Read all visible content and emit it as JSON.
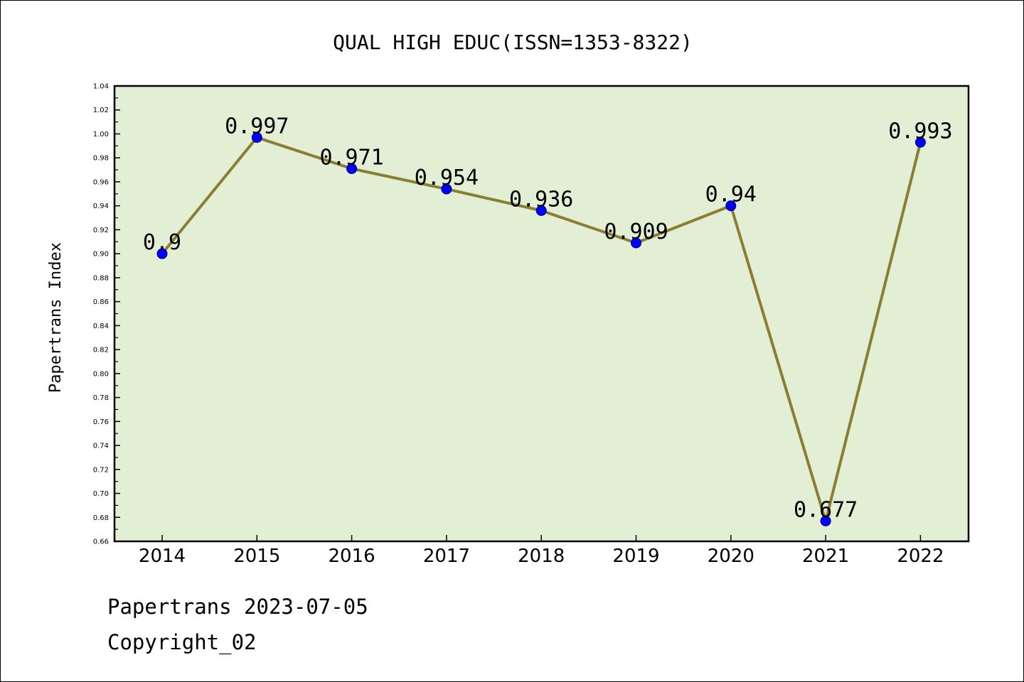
{
  "chart_data": {
    "type": "line",
    "title": "QUAL HIGH EDUC(ISSN=1353-8322)",
    "xlabel": "",
    "ylabel": "Papertrans Index",
    "categories": [
      "2014",
      "2015",
      "2016",
      "2017",
      "2018",
      "2019",
      "2020",
      "2021",
      "2022"
    ],
    "series": [
      {
        "values": [
          0.9,
          0.997,
          0.971,
          0.954,
          0.936,
          0.909,
          0.94,
          0.677,
          0.993
        ],
        "labels": [
          "0.9",
          "0.997",
          "0.971",
          "0.954",
          "0.936",
          "0.909",
          "0.94",
          "0.677",
          "0.993"
        ]
      }
    ],
    "ylim": [
      0.66,
      1.04
    ],
    "yticks": [
      "0.66",
      "0.68",
      "0.70",
      "0.72",
      "0.74",
      "0.76",
      "0.78",
      "0.80",
      "0.82",
      "0.84",
      "0.86",
      "0.88",
      "0.90",
      "0.92",
      "0.94",
      "0.96",
      "0.98",
      "1.00",
      "1.02",
      "1.04"
    ],
    "grid": false,
    "legend": "none",
    "colors": {
      "plot_background": "#e2efd5",
      "line": "#8b7d32",
      "marker": "#0000ff",
      "marker_edge": "#00007a"
    }
  },
  "footer": {
    "line1": "Papertrans 2023-07-05",
    "line2": "Copyright_02"
  }
}
